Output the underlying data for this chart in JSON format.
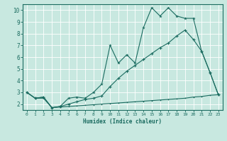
{
  "xlabel": "Humidex (Indice chaleur)",
  "xlim": [
    -0.5,
    23.5
  ],
  "ylim": [
    1.5,
    10.5
  ],
  "yticks": [
    2,
    3,
    4,
    5,
    6,
    7,
    8,
    9,
    10
  ],
  "xticks": [
    0,
    1,
    2,
    3,
    4,
    5,
    6,
    7,
    8,
    9,
    10,
    11,
    12,
    13,
    14,
    15,
    16,
    17,
    18,
    19,
    20,
    21,
    22,
    23
  ],
  "bg_color": "#c8e8e0",
  "grid_color": "#ffffff",
  "line_color": "#1a6b60",
  "line1_x": [
    0,
    1,
    2,
    3,
    4,
    5,
    6,
    7,
    8,
    9,
    10,
    11,
    12,
    13,
    14,
    15,
    16,
    17,
    18,
    19,
    20,
    21,
    22,
    23
  ],
  "line1_y": [
    3.0,
    2.5,
    2.6,
    1.7,
    1.8,
    2.5,
    2.6,
    2.5,
    3.0,
    3.7,
    7.0,
    5.5,
    6.2,
    5.5,
    8.5,
    10.2,
    9.5,
    10.2,
    9.5,
    9.3,
    9.3,
    6.5,
    4.7,
    2.8
  ],
  "line2_x": [
    0,
    1,
    2,
    3,
    4,
    5,
    6,
    7,
    8,
    9,
    10,
    11,
    12,
    13,
    14,
    15,
    16,
    17,
    18,
    19,
    20,
    21,
    22,
    23
  ],
  "line2_y": [
    3.0,
    2.5,
    2.6,
    1.7,
    1.8,
    2.0,
    2.2,
    2.4,
    2.5,
    2.7,
    3.5,
    4.2,
    4.8,
    5.3,
    5.8,
    6.3,
    6.8,
    7.2,
    7.8,
    8.3,
    7.5,
    6.5,
    4.7,
    2.8
  ],
  "line3_x": [
    0,
    1,
    2,
    3,
    4,
    5,
    6,
    7,
    8,
    9,
    10,
    11,
    12,
    13,
    14,
    15,
    16,
    17,
    18,
    19,
    20,
    21,
    22,
    23
  ],
  "line3_y": [
    3.0,
    2.5,
    2.5,
    1.7,
    1.75,
    1.8,
    1.85,
    1.9,
    1.95,
    2.0,
    2.05,
    2.1,
    2.15,
    2.2,
    2.25,
    2.3,
    2.35,
    2.4,
    2.45,
    2.5,
    2.6,
    2.65,
    2.75,
    2.8
  ]
}
